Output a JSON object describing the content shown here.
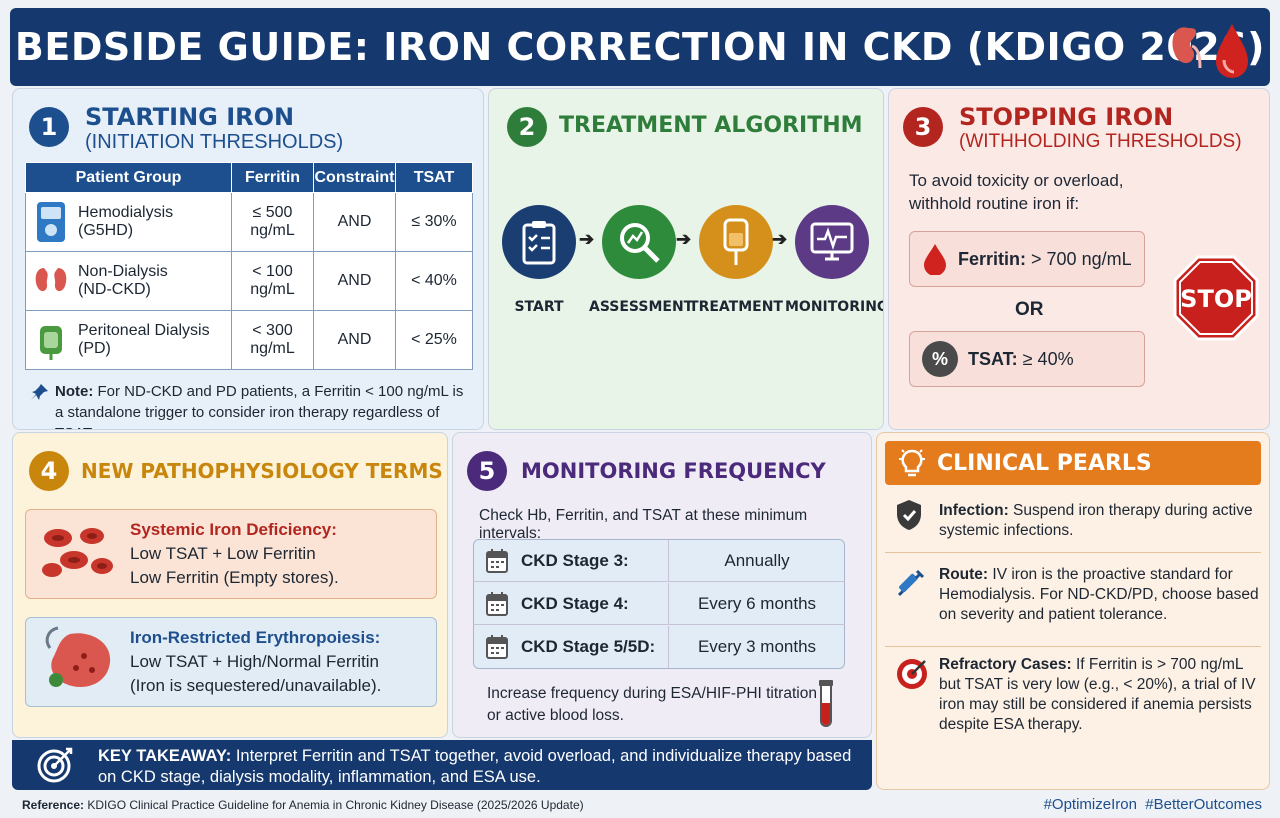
{
  "header": {
    "title": "BEDSIDE GUIDE: IRON CORRECTION IN CKD (KDIGO 2026)"
  },
  "section1": {
    "number": "1",
    "title": "STARTING IRON",
    "subtitle": "(INITIATION THRESHOLDS)",
    "table": {
      "headers": [
        "Patient Group",
        "Ferritin",
        "Constraint",
        "TSAT"
      ],
      "rows": [
        {
          "group": "Hemodialysis",
          "group2": "(G5HD)",
          "ferritin": "≤ 500",
          "ferritin2": "ng/mL",
          "constraint": "AND",
          "tsat": "≤ 30%"
        },
        {
          "group": "Non-Dialysis",
          "group2": "(ND-CKD)",
          "ferritin": "< 100",
          "ferritin2": "ng/mL",
          "constraint": "AND",
          "tsat": "< 40%"
        },
        {
          "group": "Peritoneal Dialysis",
          "group2": "(PD)",
          "ferritin": "< 300",
          "ferritin2": "ng/mL",
          "constraint": "AND",
          "tsat": "< 25%"
        }
      ]
    },
    "note_label": "Note:",
    "note_text": " For ND-CKD and PD patients, a Ferritin < 100 ng/mL is a standalone trigger to consider iron therapy regardless of TSAT."
  },
  "section2": {
    "number": "2",
    "title": "TREATMENT ALGORITHM",
    "steps": [
      "START",
      "ASSESSMENT",
      "TREATMENT",
      "MONITORING"
    ]
  },
  "section3": {
    "number": "3",
    "title": "STOPPING IRON",
    "subtitle": "(WITHHOLDING THRESHOLDS)",
    "intro": "To avoid toxicity or overload, withhold routine iron if:",
    "ferritin_label": "Ferritin:",
    "ferritin_value": " > 700 ng/mL",
    "or": "OR",
    "tsat_label": "TSAT:",
    "tsat_value": " ≥ 40%",
    "stop_sign": "STOP"
  },
  "section4": {
    "number": "4",
    "title": "NEW PATHOPHYSIOLOGY TERMS",
    "box1": {
      "title": "Systemic Iron Deficiency:",
      "line1": "Low TSAT + Low Ferritin",
      "line2": "Low Ferritin (Empty stores)."
    },
    "box2": {
      "title": "Iron-Restricted Erythropoiesis:",
      "line1": "Low TSAT + High/Normal Ferritin",
      "line2": "(Iron is sequestered/unavailable)."
    }
  },
  "section5": {
    "number": "5",
    "title": "MONITORING FREQUENCY",
    "intro": "Check Hb, Ferritin, and TSAT at these minimum intervals:",
    "rows": [
      {
        "stage": "CKD Stage 3:",
        "interval": "Annually"
      },
      {
        "stage": "CKD Stage 4:",
        "interval": "Every 6 months"
      },
      {
        "stage": "CKD Stage 5/5D:",
        "interval": "Every 3 months"
      }
    ],
    "footer_line1": "Increase frequency during ESA/HIF-PHI titration",
    "footer_line2": "or active blood loss."
  },
  "pearls": {
    "title": "CLINICAL PEARLS",
    "items": [
      {
        "label": "Infection:",
        "text": " Suspend iron therapy during active systemic infections."
      },
      {
        "label": "Route:",
        "text": " IV iron is the proactive standard for Hemodialysis. For ND-CKD/PD, choose based on severity and patient tolerance."
      },
      {
        "label": "Refractory Cases:",
        "text": " If Ferritin is > 700 ng/mL but TSAT is very low (e.g., < 20%), a trial of IV iron may still be considered if anemia persists despite ESA therapy."
      }
    ]
  },
  "takeaway": {
    "label": "KEY TAKEAWAY:",
    "text": " Interpret Ferritin and TSAT together, avoid overload, and individualize therapy based on CKD stage, dialysis modality, inflammation, and ESA use."
  },
  "footer": {
    "reference_label": "Reference:",
    "reference_text": " KDIGO Clinical Practice Guideline for Anemia in Chronic Kidney Disease (2025/2026 Update)",
    "hashtags": "#OptimizeIron  #BetterOutcomes"
  },
  "colors": {
    "navy": "#15386e",
    "blue": "#1d4f8e",
    "green": "#2e7d3a",
    "red": "#b3251f",
    "amber": "#c8860d",
    "purple": "#4b2a7b",
    "orange": "#e47b1c"
  }
}
